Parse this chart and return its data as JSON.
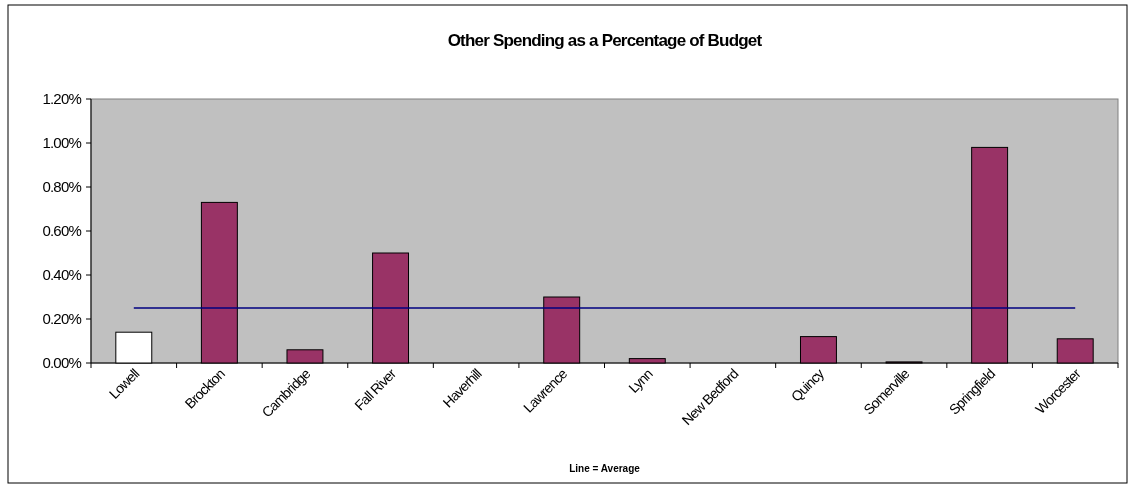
{
  "chart_data": {
    "type": "bar",
    "title": "Other Spending as a Percentage of Budget",
    "categories": [
      "Lowell",
      "Brockton",
      "Cambridge",
      "Fall River",
      "Haverhill",
      "Lawrence",
      "Lynn",
      "New Bedford",
      "Quincy",
      "Somerville",
      "Springfield",
      "Worcester"
    ],
    "values": [
      0.14,
      0.73,
      0.06,
      0.5,
      0,
      0.3,
      0.02,
      0,
      0.12,
      0.005,
      0.98,
      0.11
    ],
    "colors": [
      "#ffffff",
      "#993366",
      "#993366",
      "#993366",
      "#993366",
      "#993366",
      "#993366",
      "#993366",
      "#993366",
      "#993366",
      "#993366",
      "#993366"
    ],
    "ylim": [
      0,
      1.2
    ],
    "yticks": [
      {
        "value": 0,
        "label": "0.00%"
      },
      {
        "value": 0.2,
        "label": "0.20%"
      },
      {
        "value": 0.4,
        "label": "0.40%"
      },
      {
        "value": 0.6,
        "label": "0.60%"
      },
      {
        "value": 0.8,
        "label": "0.80%"
      },
      {
        "value": 1,
        "label": "1.00%"
      },
      {
        "value": 1.2,
        "label": "1.20%"
      }
    ],
    "ref_lines": [
      {
        "axis": "y",
        "value": 0.25,
        "color": "#000080"
      }
    ],
    "annotations": [
      "Line = Average"
    ],
    "grid": false
  }
}
